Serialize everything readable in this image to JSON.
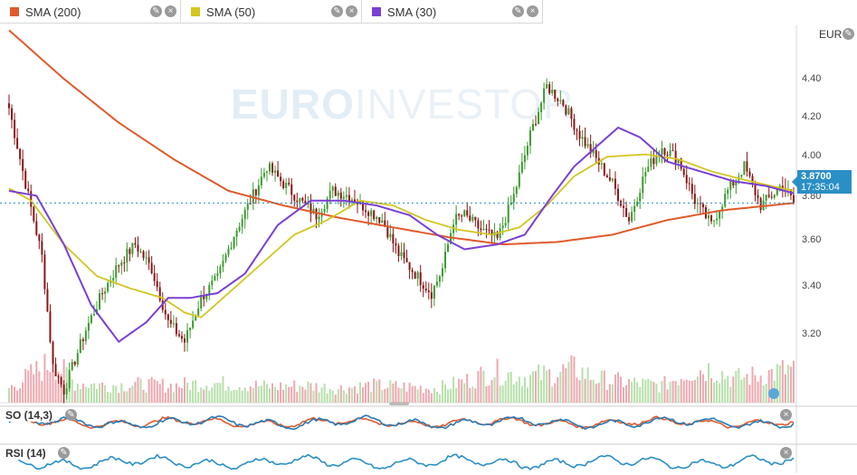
{
  "legend": [
    {
      "label": "SMA (200)",
      "color": "#e05a2b"
    },
    {
      "label": "SMA (50)",
      "color": "#d4c520"
    },
    {
      "label": "SMA (30)",
      "color": "#7a3fd4"
    }
  ],
  "axis": {
    "currency": "EUR",
    "ticks": [
      "4.40",
      "4.20",
      "4.00",
      "3.80",
      "3.60",
      "3.40",
      "3.20"
    ]
  },
  "price_tag": {
    "price": "3.8700",
    "time": "17:35:04"
  },
  "watermark": {
    "bold": "EURO",
    "rest": "INVESTOR"
  },
  "subcharts": {
    "so_label": "SO (14,3)",
    "rsi_label": "RSI (14)"
  },
  "colors": {
    "up": "#3a9a2e",
    "down": "#8a1515",
    "vol_up": "#b7e0ab",
    "vol_down": "#eda8b0",
    "sma200": "#e05a2b",
    "sma50": "#d4c520",
    "sma30": "#7a3fd4",
    "so_k": "#2a7ab5",
    "so_d": "#e05a2b",
    "rsi": "#2a8fc5"
  },
  "chart_data": {
    "type": "candlestick",
    "ylim": [
      3.05,
      4.6
    ],
    "yticks": [
      4.4,
      4.2,
      4.0,
      3.8,
      3.6,
      3.4,
      3.2
    ],
    "close_anchors": [
      [
        0,
        4.26
      ],
      [
        6,
        3.95
      ],
      [
        12,
        3.65
      ],
      [
        16,
        3.2
      ],
      [
        20,
        3.1
      ],
      [
        28,
        3.35
      ],
      [
        34,
        3.5
      ],
      [
        40,
        3.62
      ],
      [
        46,
        3.7
      ],
      [
        52,
        3.6
      ],
      [
        58,
        3.38
      ],
      [
        64,
        3.3
      ],
      [
        70,
        3.48
      ],
      [
        76,
        3.56
      ],
      [
        82,
        3.74
      ],
      [
        88,
        3.88
      ],
      [
        94,
        4.02
      ],
      [
        100,
        3.95
      ],
      [
        106,
        3.88
      ],
      [
        112,
        3.82
      ],
      [
        118,
        3.92
      ],
      [
        124,
        3.9
      ],
      [
        130,
        3.85
      ],
      [
        136,
        3.8
      ],
      [
        142,
        3.66
      ],
      [
        148,
        3.58
      ],
      [
        154,
        3.5
      ],
      [
        158,
        3.6
      ],
      [
        162,
        3.8
      ],
      [
        166,
        3.82
      ],
      [
        172,
        3.76
      ],
      [
        178,
        3.72
      ],
      [
        184,
        3.9
      ],
      [
        190,
        4.15
      ],
      [
        196,
        4.35
      ],
      [
        202,
        4.28
      ],
      [
        208,
        4.15
      ],
      [
        214,
        4.05
      ],
      [
        220,
        3.95
      ],
      [
        226,
        3.8
      ],
      [
        232,
        4.0
      ],
      [
        238,
        4.1
      ],
      [
        244,
        4.05
      ],
      [
        250,
        3.88
      ],
      [
        256,
        3.78
      ],
      [
        262,
        3.92
      ],
      [
        268,
        4.02
      ],
      [
        274,
        3.86
      ],
      [
        278,
        3.9
      ],
      [
        282,
        3.95
      ],
      [
        286,
        3.87
      ]
    ],
    "sma200_anchors": [
      [
        0,
        4.58
      ],
      [
        20,
        4.38
      ],
      [
        40,
        4.2
      ],
      [
        60,
        4.05
      ],
      [
        80,
        3.92
      ],
      [
        100,
        3.86
      ],
      [
        120,
        3.81
      ],
      [
        140,
        3.77
      ],
      [
        160,
        3.73
      ],
      [
        180,
        3.7
      ],
      [
        200,
        3.71
      ],
      [
        220,
        3.74
      ],
      [
        240,
        3.8
      ],
      [
        260,
        3.84
      ],
      [
        286,
        3.87
      ]
    ],
    "sma50_anchors": [
      [
        0,
        3.93
      ],
      [
        8,
        3.88
      ],
      [
        20,
        3.7
      ],
      [
        32,
        3.57
      ],
      [
        44,
        3.52
      ],
      [
        56,
        3.48
      ],
      [
        64,
        3.42
      ],
      [
        70,
        3.4
      ],
      [
        80,
        3.5
      ],
      [
        92,
        3.62
      ],
      [
        104,
        3.74
      ],
      [
        116,
        3.8
      ],
      [
        128,
        3.88
      ],
      [
        140,
        3.86
      ],
      [
        152,
        3.8
      ],
      [
        164,
        3.76
      ],
      [
        176,
        3.74
      ],
      [
        186,
        3.77
      ],
      [
        196,
        3.86
      ],
      [
        206,
        3.98
      ],
      [
        218,
        4.06
      ],
      [
        232,
        4.07
      ],
      [
        244,
        4.05
      ],
      [
        256,
        4.0
      ],
      [
        270,
        3.96
      ],
      [
        286,
        3.92
      ]
    ],
    "sma30_anchors": [
      [
        0,
        3.92
      ],
      [
        10,
        3.9
      ],
      [
        20,
        3.7
      ],
      [
        30,
        3.45
      ],
      [
        40,
        3.3
      ],
      [
        50,
        3.38
      ],
      [
        58,
        3.48
      ],
      [
        66,
        3.48
      ],
      [
        76,
        3.5
      ],
      [
        86,
        3.58
      ],
      [
        98,
        3.78
      ],
      [
        110,
        3.88
      ],
      [
        122,
        3.88
      ],
      [
        134,
        3.86
      ],
      [
        146,
        3.82
      ],
      [
        156,
        3.74
      ],
      [
        166,
        3.68
      ],
      [
        178,
        3.7
      ],
      [
        188,
        3.74
      ],
      [
        198,
        3.9
      ],
      [
        206,
        4.02
      ],
      [
        214,
        4.1
      ],
      [
        222,
        4.18
      ],
      [
        230,
        4.14
      ],
      [
        240,
        4.04
      ],
      [
        252,
        4.0
      ],
      [
        264,
        3.96
      ],
      [
        276,
        3.94
      ],
      [
        286,
        3.91
      ]
    ],
    "volume_anchors": [
      [
        0,
        0.25
      ],
      [
        10,
        0.55
      ],
      [
        16,
        0.72
      ],
      [
        24,
        0.35
      ],
      [
        36,
        0.3
      ],
      [
        48,
        0.32
      ],
      [
        60,
        0.3
      ],
      [
        72,
        0.35
      ],
      [
        84,
        0.32
      ],
      [
        96,
        0.28
      ],
      [
        108,
        0.3
      ],
      [
        120,
        0.25
      ],
      [
        132,
        0.3
      ],
      [
        144,
        0.28
      ],
      [
        156,
        0.25
      ],
      [
        168,
        0.4
      ],
      [
        176,
        0.55
      ],
      [
        188,
        0.45
      ],
      [
        198,
        0.5
      ],
      [
        206,
        0.6
      ],
      [
        214,
        0.42
      ],
      [
        226,
        0.35
      ],
      [
        238,
        0.3
      ],
      [
        248,
        0.55
      ],
      [
        256,
        0.6
      ],
      [
        264,
        0.42
      ],
      [
        274,
        0.48
      ],
      [
        286,
        0.6
      ]
    ]
  }
}
